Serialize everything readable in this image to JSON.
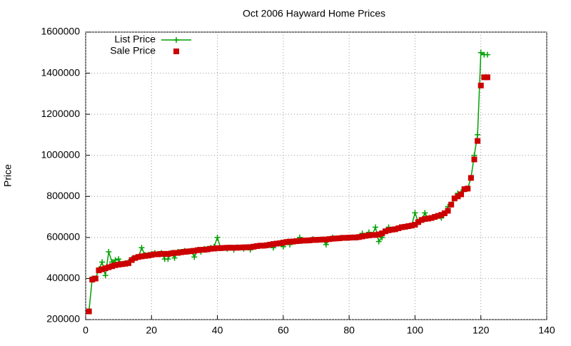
{
  "chart_data": {
    "type": "line",
    "title": "Oct 2006 Hayward Home Prices",
    "y_label": "Price",
    "xlim": [
      0,
      140
    ],
    "xticks": [
      0,
      20,
      40,
      60,
      80,
      100,
      120,
      140
    ],
    "ylim": [
      200000,
      1600000
    ],
    "yticks": [
      200000,
      400000,
      600000,
      800000,
      1000000,
      1200000,
      1400000,
      1600000
    ],
    "grid": true,
    "legend": "top-left",
    "x": [
      1,
      2,
      3,
      4,
      5,
      6,
      7,
      8,
      9,
      10,
      11,
      12,
      13,
      14,
      15,
      16,
      17,
      18,
      19,
      20,
      21,
      22,
      23,
      24,
      25,
      26,
      27,
      28,
      29,
      30,
      31,
      32,
      33,
      34,
      35,
      36,
      37,
      38,
      39,
      40,
      41,
      42,
      43,
      44,
      45,
      46,
      47,
      48,
      49,
      50,
      51,
      52,
      53,
      54,
      55,
      56,
      57,
      58,
      59,
      60,
      61,
      62,
      63,
      64,
      65,
      66,
      67,
      68,
      69,
      70,
      71,
      72,
      73,
      74,
      75,
      76,
      77,
      78,
      79,
      80,
      81,
      82,
      83,
      84,
      85,
      86,
      87,
      88,
      89,
      90,
      91,
      92,
      93,
      94,
      95,
      96,
      97,
      98,
      99,
      100,
      101,
      102,
      103,
      104,
      105,
      106,
      107,
      108,
      109,
      110,
      111,
      112,
      113,
      114,
      115,
      116,
      117,
      118,
      119,
      120,
      121,
      122
    ],
    "series": [
      {
        "name": "List Price",
        "color": "#00a000",
        "style": "linespoints",
        "values": [
          240000,
          400000,
          400000,
          445000,
          480000,
          415000,
          530000,
          480000,
          490000,
          495000,
          470000,
          475000,
          480000,
          495000,
          500000,
          505000,
          550000,
          515000,
          515000,
          520000,
          525000,
          520000,
          525000,
          495000,
          495000,
          525000,
          500000,
          530000,
          530000,
          535000,
          530000,
          535000,
          505000,
          540000,
          530000,
          545000,
          545000,
          550000,
          555000,
          600000,
          548000,
          549000,
          545000,
          550000,
          540000,
          552000,
          551000,
          545000,
          552000,
          540000,
          555000,
          558000,
          560000,
          560000,
          562000,
          565000,
          550000,
          570000,
          572000,
          555000,
          578000,
          565000,
          580000,
          582000,
          600000,
          585000,
          585000,
          586000,
          592000,
          588000,
          589000,
          590000,
          565000,
          592000,
          600000,
          595000,
          596000,
          598000,
          598000,
          599000,
          600000,
          600000,
          602000,
          620000,
          608000,
          625000,
          612000,
          650000,
          580000,
          600000,
          630000,
          650000,
          638000,
          640000,
          645000,
          650000,
          652000,
          655000,
          658000,
          720000,
          675000,
          685000,
          720000,
          692000,
          695000,
          700000,
          705000,
          695000,
          718000,
          750000,
          760000,
          790000,
          815000,
          820000,
          835000,
          838000,
          890000,
          1000000,
          1100000,
          1500000,
          1490000,
          1490000
        ]
      },
      {
        "name": "Sale Price",
        "color": "#cc0000",
        "style": "points",
        "values": [
          240000,
          395000,
          400000,
          440000,
          445000,
          450000,
          455000,
          460000,
          465000,
          468000,
          470000,
          472000,
          475000,
          490000,
          500000,
          505000,
          508000,
          510000,
          512000,
          515000,
          518000,
          518000,
          520000,
          520000,
          520000,
          522000,
          525000,
          525000,
          528000,
          530000,
          532000,
          533000,
          535000,
          538000,
          540000,
          540000,
          542000,
          545000,
          546000,
          548000,
          548000,
          549000,
          550000,
          550000,
          550000,
          550000,
          551000,
          552000,
          552000,
          553000,
          555000,
          558000,
          560000,
          560000,
          562000,
          565000,
          568000,
          570000,
          572000,
          575000,
          578000,
          580000,
          580000,
          582000,
          583000,
          585000,
          585000,
          586000,
          588000,
          588000,
          589000,
          590000,
          590000,
          592000,
          594000,
          595000,
          596000,
          598000,
          598000,
          599000,
          600000,
          600000,
          602000,
          605000,
          608000,
          610000,
          612000,
          612000,
          615000,
          620000,
          630000,
          635000,
          638000,
          640000,
          645000,
          650000,
          652000,
          655000,
          658000,
          662000,
          675000,
          685000,
          690000,
          692000,
          695000,
          700000,
          705000,
          710000,
          718000,
          730000,
          760000,
          790000,
          800000,
          810000,
          835000,
          838000,
          890000,
          980000,
          1070000,
          1340000,
          1380000,
          1380000
        ]
      }
    ]
  }
}
